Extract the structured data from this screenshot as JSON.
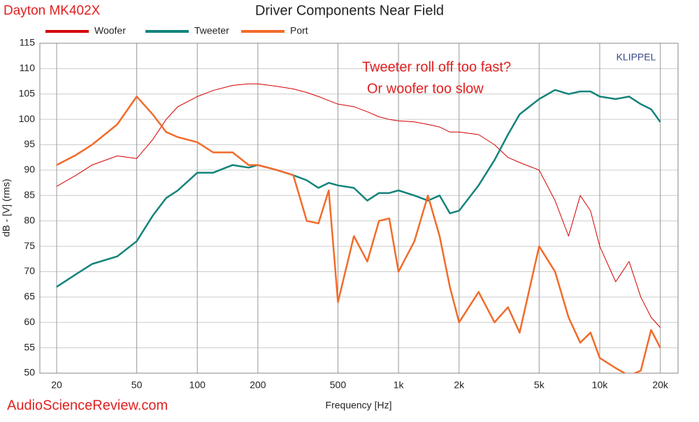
{
  "chart_data": {
    "type": "line",
    "title": "Driver Components Near Field",
    "brand": "Dayton MK402X",
    "watermark": "AudioScienceReview.com",
    "corner_label": "KLIPPEL",
    "annotations": [
      "Tweeter roll off too fast?",
      "Or woofer too slow"
    ],
    "xlabel": "Frequency [Hz]",
    "ylabel": "dB - [V] (rms)",
    "xscale": "log",
    "grid": true,
    "xlim": [
      16.5,
      24500
    ],
    "ylim": [
      50,
      115
    ],
    "xticks": [
      20,
      50,
      100,
      200,
      500,
      {
        "value": 1000,
        "label": "1k"
      },
      {
        "value": 2000,
        "label": "2k"
      },
      {
        "value": 5000,
        "label": "5k"
      },
      {
        "value": 10000,
        "label": "10k"
      },
      {
        "value": 20000,
        "label": "20k"
      }
    ],
    "yticks": [
      50,
      55,
      60,
      65,
      70,
      75,
      80,
      85,
      90,
      95,
      100,
      105,
      110,
      115
    ],
    "x": [
      20,
      25,
      30,
      40,
      50,
      60,
      70,
      80,
      100,
      120,
      150,
      180,
      200,
      250,
      300,
      350,
      400,
      450,
      500,
      600,
      700,
      800,
      900,
      1000,
      1200,
      1400,
      1600,
      1800,
      2000,
      2500,
      3000,
      3500,
      4000,
      5000,
      6000,
      7000,
      8000,
      9000,
      10000,
      12000,
      14000,
      16000,
      18000,
      20000
    ],
    "series": [
      {
        "name": "Woofer",
        "color": "#d40000",
        "width": 1,
        "values": [
          86.8,
          89,
          91,
          92.8,
          92.3,
          96,
          100,
          102.5,
          104.5,
          105.7,
          106.7,
          107,
          107,
          106.5,
          106,
          105.3,
          104.5,
          103.7,
          103,
          102.5,
          101.5,
          100.5,
          100,
          99.7,
          99.5,
          99,
          98.5,
          97.5,
          97.5,
          97,
          95,
          92.5,
          91.5,
          90,
          84,
          77,
          85,
          82,
          75,
          68,
          72,
          65,
          61,
          59
        ]
      },
      {
        "name": "Tweeter",
        "color": "#13837b",
        "width": 2.5,
        "values": [
          67,
          69.5,
          71.5,
          73,
          76,
          81,
          84.5,
          86,
          89.5,
          89.5,
          91,
          90.5,
          91,
          90,
          89,
          88,
          86.5,
          87.5,
          87,
          86.5,
          84,
          85.5,
          85.5,
          86,
          85,
          84,
          85,
          81.5,
          82,
          87,
          92,
          97,
          101,
          104,
          105.8,
          105,
          105.5,
          105.5,
          104.5,
          104,
          104.5,
          103,
          102,
          99.5
        ]
      },
      {
        "name": "Port",
        "color": "#f26b2a",
        "width": 2.5,
        "values": [
          91,
          93,
          95,
          99,
          104.5,
          101,
          97.5,
          96.5,
          95.5,
          93.5,
          93.5,
          91,
          91,
          90,
          89,
          80,
          79.5,
          86,
          64,
          77,
          72,
          80,
          80.5,
          70,
          76,
          85,
          77,
          67,
          60,
          66,
          60,
          63,
          58,
          75,
          70,
          61,
          56,
          58,
          53,
          51,
          49.5,
          50.5,
          58.5,
          55
        ]
      }
    ]
  }
}
